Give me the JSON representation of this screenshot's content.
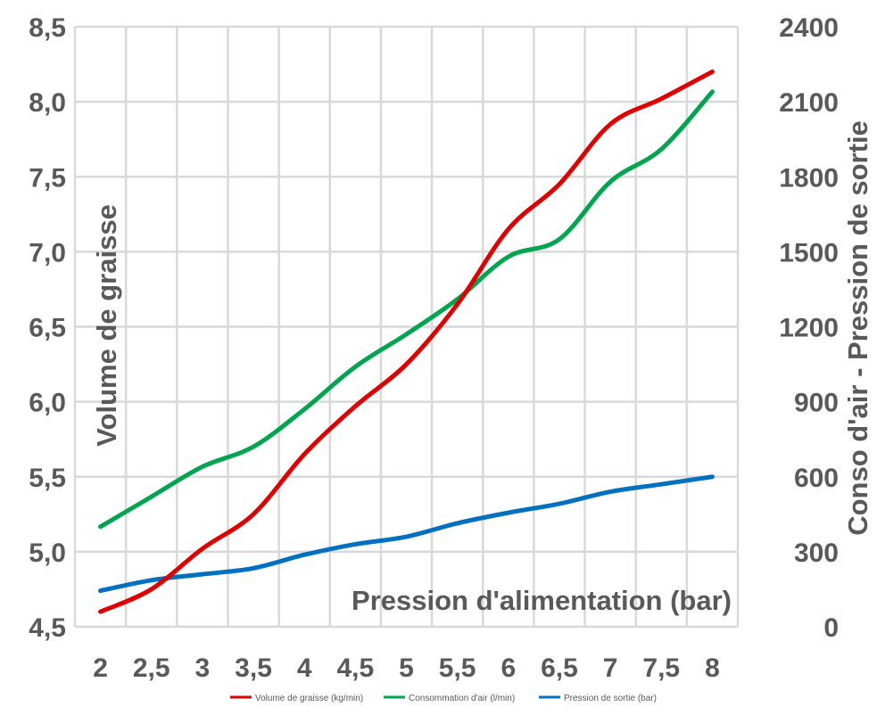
{
  "chart_data": {
    "type": "line",
    "x": [
      2,
      2.5,
      3,
      3.5,
      4,
      4.5,
      5,
      5.5,
      6,
      6.5,
      7,
      7.5,
      8
    ],
    "x_tick_labels": [
      "2",
      "2,5",
      "3",
      "3,5",
      "4",
      "4,5",
      "5",
      "5,5",
      "6",
      "6,5",
      "7",
      "7,5",
      "8"
    ],
    "xlabel": "Pression d'alimentation (bar)",
    "ylabel_left": "Volume de graisse",
    "ylabel_right": "Conso d'air - Pression de sortie",
    "ylim_left": [
      4.5,
      8.5
    ],
    "ylim_right": [
      0,
      2400
    ],
    "y_left_ticks": [
      4.5,
      5.0,
      5.5,
      6.0,
      6.5,
      7.0,
      7.5,
      8.0,
      8.5
    ],
    "y_left_tick_labels": [
      "4,5",
      "5,0",
      "5,5",
      "6,0",
      "6,5",
      "7,0",
      "7,5",
      "8,0",
      "8,5"
    ],
    "y_right_ticks": [
      0,
      300,
      600,
      900,
      1200,
      1500,
      1800,
      2100,
      2400
    ],
    "y_right_tick_labels": [
      "0",
      "300",
      "600",
      "900",
      "1200",
      "1500",
      "1800",
      "2100",
      "2400"
    ],
    "grid": true,
    "legend_position": "bottom",
    "series": [
      {
        "name": "Volume de graisse (kg/min)",
        "axis": "left",
        "color": "#e00000",
        "values": [
          4.6,
          4.75,
          5.02,
          5.25,
          5.65,
          5.97,
          6.25,
          6.65,
          7.15,
          7.45,
          7.85,
          8.02,
          8.2
        ]
      },
      {
        "name": "Consommation d'air (l/min)",
        "axis": "right",
        "color": "#00a64f",
        "values": [
          400,
          520,
          640,
          720,
          870,
          1040,
          1170,
          1310,
          1480,
          1550,
          1780,
          1910,
          2140
        ]
      },
      {
        "name": "Pression de sortie (bar)",
        "axis": "left",
        "color": "#0070c0",
        "values": [
          4.74,
          4.81,
          4.85,
          4.89,
          4.98,
          5.05,
          5.1,
          5.19,
          5.26,
          5.32,
          5.4,
          5.45,
          5.5
        ]
      }
    ]
  }
}
